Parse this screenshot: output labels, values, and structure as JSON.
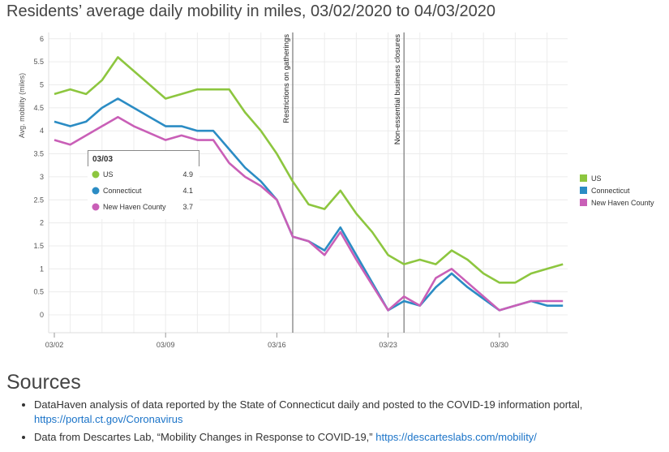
{
  "title": "Residents’ average daily mobility in miles, 03/02/2020 to 04/03/2020",
  "chart_data": {
    "type": "line",
    "title": "Residents’ average daily mobility in miles, 03/02/2020 to 04/03/2020",
    "ylabel": "Avg. mobility (miles)",
    "xlabel": "",
    "ylim": [
      0,
      6
    ],
    "yticks": [
      "0",
      "0.5",
      "1",
      "1.5",
      "2",
      "2.5",
      "3",
      "3.5",
      "4",
      "4.5",
      "5",
      "5.5",
      "6"
    ],
    "xticks": [
      "03/02",
      "03/09",
      "03/16",
      "03/23",
      "03/30"
    ],
    "x": [
      "03/02",
      "03/03",
      "03/04",
      "03/05",
      "03/06",
      "03/07",
      "03/08",
      "03/09",
      "03/10",
      "03/11",
      "03/12",
      "03/13",
      "03/14",
      "03/15",
      "03/16",
      "03/17",
      "03/18",
      "03/19",
      "03/20",
      "03/21",
      "03/22",
      "03/23",
      "03/24",
      "03/25",
      "03/26",
      "03/27",
      "03/28",
      "03/29",
      "03/30",
      "03/31",
      "04/01",
      "04/02",
      "04/03"
    ],
    "series": [
      {
        "name": "US",
        "color": "#8dc63f",
        "values": [
          4.8,
          4.9,
          4.8,
          5.1,
          5.6,
          5.3,
          5.0,
          4.7,
          4.8,
          4.9,
          4.9,
          4.9,
          4.4,
          4.0,
          3.5,
          2.9,
          2.4,
          2.3,
          2.7,
          2.2,
          1.8,
          1.3,
          1.1,
          1.2,
          1.1,
          1.4,
          1.2,
          0.9,
          0.7,
          0.7,
          0.9,
          1.0,
          1.1
        ]
      },
      {
        "name": "Connecticut",
        "color": "#2b8cc4",
        "values": [
          4.2,
          4.1,
          4.2,
          4.5,
          4.7,
          4.5,
          4.3,
          4.1,
          4.1,
          4.0,
          4.0,
          3.6,
          3.2,
          2.9,
          2.5,
          1.7,
          1.6,
          1.4,
          1.9,
          1.3,
          0.7,
          0.1,
          0.3,
          0.2,
          0.6,
          0.9,
          0.6,
          0.35,
          0.1,
          0.2,
          0.3,
          0.2,
          0.2
        ]
      },
      {
        "name": "New Haven County",
        "color": "#c95fb7",
        "values": [
          3.8,
          3.7,
          3.9,
          4.1,
          4.3,
          4.1,
          3.95,
          3.8,
          3.9,
          3.8,
          3.8,
          3.3,
          3.0,
          2.8,
          2.5,
          1.7,
          1.6,
          1.3,
          1.8,
          1.2,
          0.65,
          0.1,
          0.4,
          0.2,
          0.8,
          1.0,
          0.7,
          0.4,
          0.1,
          0.2,
          0.3,
          0.3,
          0.3
        ]
      }
    ],
    "annotations": [
      {
        "x": "03/17",
        "label": "Restrictions on gatherings"
      },
      {
        "x": "03/24",
        "label": "Non-essential business closures"
      }
    ],
    "tooltip": {
      "date": "03/03",
      "rows": [
        {
          "name": "US",
          "value": "4.9"
        },
        {
          "name": "Connecticut",
          "value": "4.1"
        },
        {
          "name": "New Haven County",
          "value": "3.7"
        }
      ]
    },
    "legend": "right",
    "grid": true
  },
  "sources": {
    "heading": "Sources",
    "items": [
      {
        "text": "DataHaven analysis of data reported by the State of Connecticut daily and posted to the COVID-19 information portal, ",
        "link": "https://portal.ct.gov/Coronavirus"
      },
      {
        "text": "Data from Descartes Lab, “Mobility Changes in Response to COVID-19,” ",
        "link": "https://descarteslabs.com/mobility/"
      }
    ]
  }
}
